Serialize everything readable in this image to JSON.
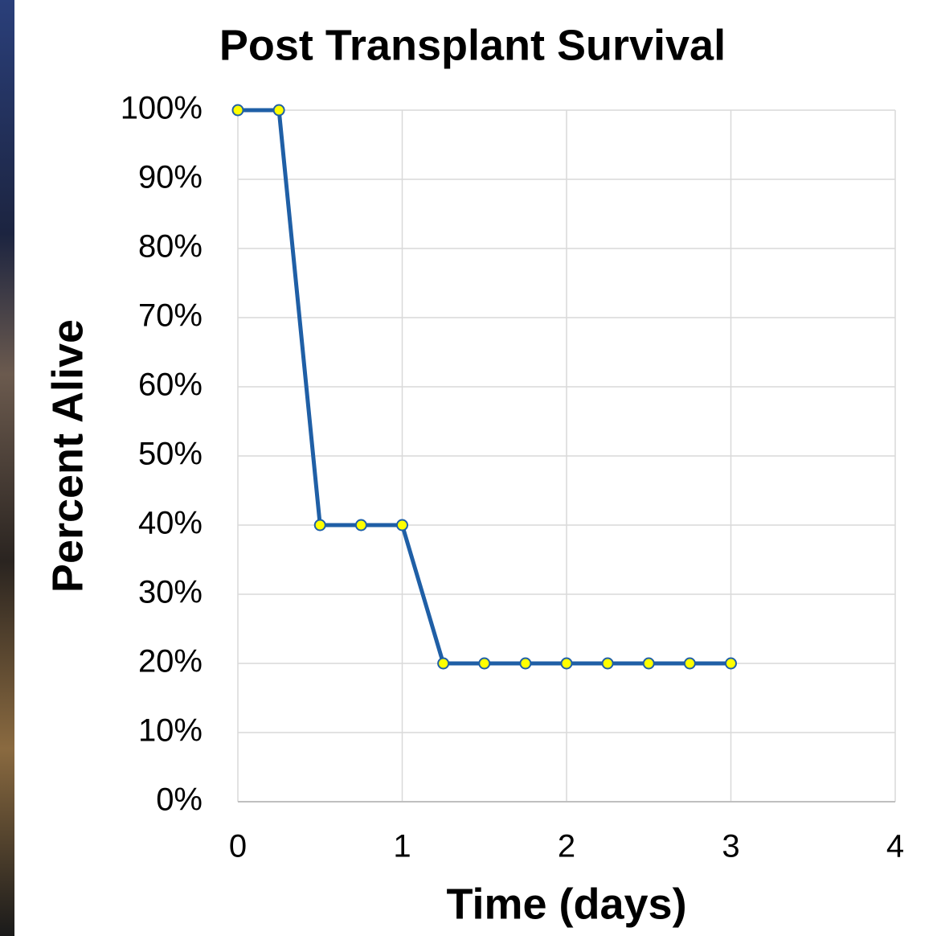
{
  "chart_data": {
    "type": "line",
    "title": "Post Transplant Survival",
    "x_label": "Time (days)",
    "y_label": "Percent Alive",
    "x": [
      0,
      0.25,
      0.5,
      0.75,
      1,
      1.25,
      1.5,
      1.75,
      2,
      2.25,
      2.5,
      2.75,
      3
    ],
    "series": [
      {
        "color": "#1f5fa6",
        "marker_color": "#ffff00",
        "values": [
          100,
          100,
          40,
          40,
          40,
          20,
          20,
          20,
          20,
          20,
          20,
          20,
          20
        ]
      }
    ],
    "xlim": [
      0,
      4
    ],
    "xticks": [
      0,
      1,
      2,
      3,
      4
    ],
    "ylim": [
      0,
      100
    ],
    "yticks": [
      {
        "value": 0,
        "label": "0%"
      },
      {
        "value": 10,
        "label": "10%"
      },
      {
        "value": 20,
        "label": "20%"
      },
      {
        "value": 30,
        "label": "30%"
      },
      {
        "value": 40,
        "label": "40%"
      },
      {
        "value": 50,
        "label": "50%"
      },
      {
        "value": 60,
        "label": "60%"
      },
      {
        "value": 70,
        "label": "70%"
      },
      {
        "value": 80,
        "label": "80%"
      },
      {
        "value": 90,
        "label": "90%"
      },
      {
        "value": 100,
        "label": "100%"
      }
    ],
    "grid": true
  }
}
